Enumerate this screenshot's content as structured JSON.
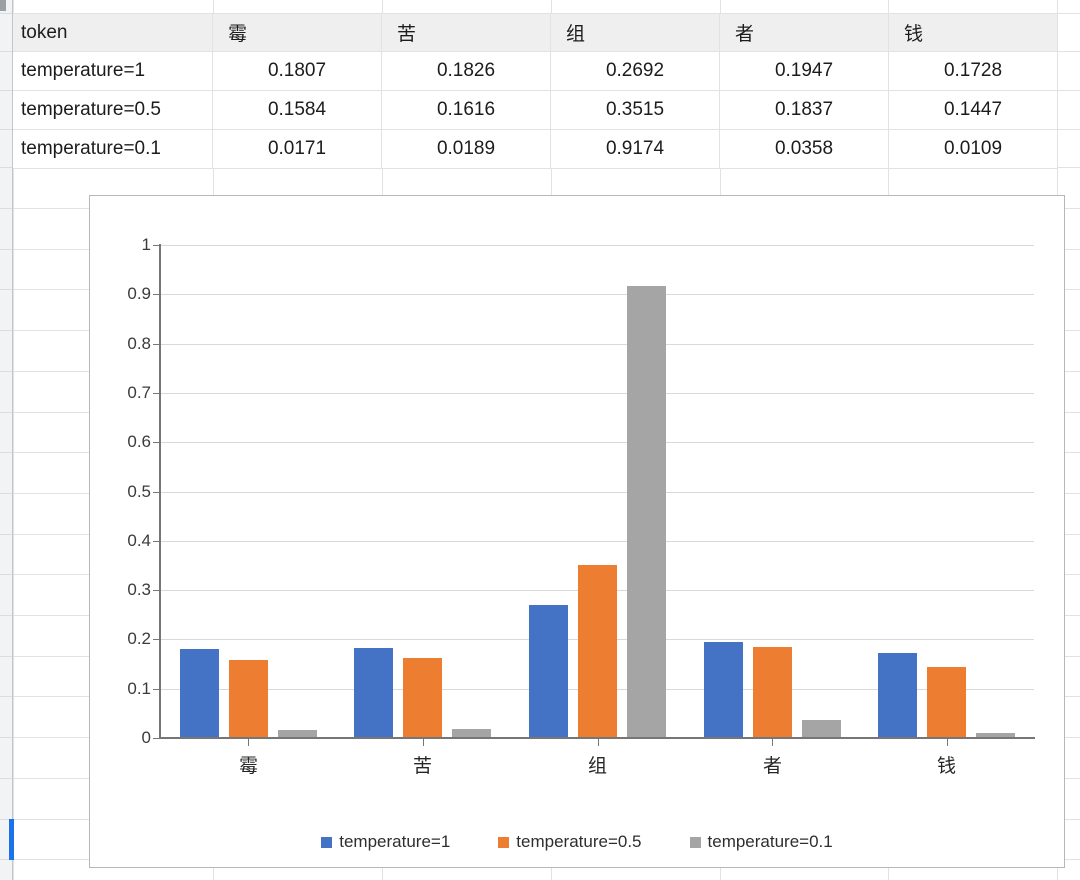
{
  "table": {
    "header": [
      "token",
      "霉",
      "苦",
      "组",
      "者",
      "钱"
    ],
    "rows": [
      {
        "label": "temperature=1",
        "values": [
          "0.1807",
          "0.1826",
          "0.2692",
          "0.1947",
          "0.1728"
        ]
      },
      {
        "label": "temperature=0.5",
        "values": [
          "0.1584",
          "0.1616",
          "0.3515",
          "0.1837",
          "0.1447"
        ]
      },
      {
        "label": "temperature=0.1",
        "values": [
          "0.0171",
          "0.0189",
          "0.9174",
          "0.0358",
          "0.0109"
        ]
      }
    ]
  },
  "chart_data": {
    "type": "bar",
    "title": "",
    "categories": [
      "霉",
      "苦",
      "组",
      "者",
      "钱"
    ],
    "series": [
      {
        "name": "temperature=1",
        "color": "#4472C4",
        "values": [
          0.1807,
          0.1826,
          0.2692,
          0.1947,
          0.1728
        ]
      },
      {
        "name": "temperature=0.5",
        "color": "#ED7D31",
        "values": [
          0.1584,
          0.1616,
          0.3515,
          0.1837,
          0.1447
        ]
      },
      {
        "name": "temperature=0.1",
        "color": "#A5A5A5",
        "values": [
          0.0171,
          0.0189,
          0.9174,
          0.0358,
          0.0109
        ]
      }
    ],
    "xlabel": "",
    "ylabel": "",
    "ylim": [
      0,
      1
    ],
    "ytick_step": 0.1,
    "ytick_labels": [
      "0",
      "0.1",
      "0.2",
      "0.3",
      "0.4",
      "0.5",
      "0.6",
      "0.7",
      "0.8",
      "0.9",
      "1"
    ],
    "grid": true,
    "legend_position": "bottom"
  },
  "colors": {
    "series_blue": "#4472C4",
    "series_orange": "#ED7D31",
    "series_gray": "#A5A5A5",
    "selection_blue": "#1a73e8",
    "grid_line": "#e2e2e2",
    "chart_grid_line": "#d9d9d9",
    "axis_line": "#767676",
    "header_fill": "#efefef",
    "strip_fill": "#f1f3f4",
    "chart_border": "#b7b7b7"
  }
}
